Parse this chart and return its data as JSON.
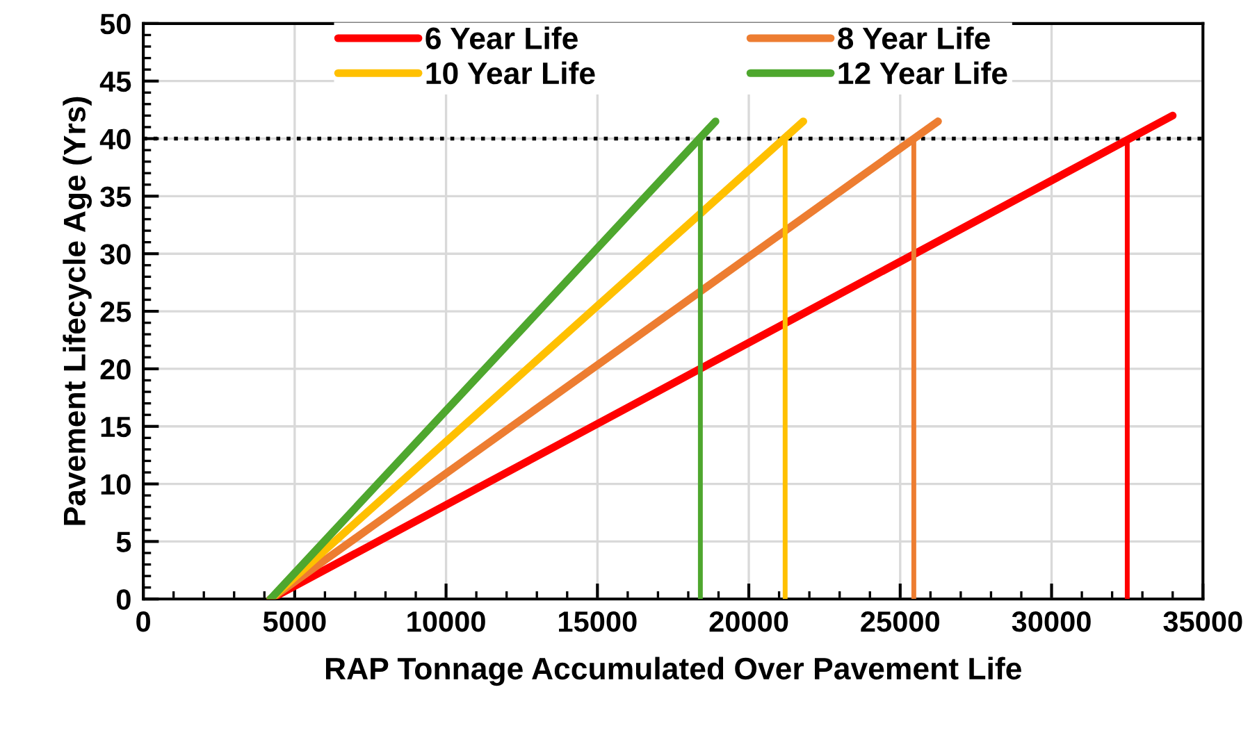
{
  "chart_data": {
    "type": "line",
    "xlabel": "RAP Tonnage Accumulated Over Pavement Life",
    "ylabel": "Pavement Lifecycle Age (Yrs)",
    "xlim": [
      0,
      35000
    ],
    "xticks": [
      0,
      5000,
      10000,
      15000,
      20000,
      25000,
      30000,
      35000
    ],
    "ylim": [
      0,
      50
    ],
    "yticks": [
      0,
      5,
      10,
      15,
      20,
      25,
      30,
      35,
      40,
      45,
      50
    ],
    "grid": true,
    "legend": "top",
    "marker": "none",
    "line_style": "solid",
    "series": [
      {
        "name": "6 Year Life",
        "color": "#ff0000",
        "x": [
          4200,
          34000
        ],
        "values": [
          0,
          42
        ]
      },
      {
        "name": "8 Year Life",
        "color": "#ed7d31",
        "x": [
          4200,
          26250
        ],
        "values": [
          0,
          41.5
        ]
      },
      {
        "name": "10 Year Life",
        "color": "#ffc000",
        "x": [
          4200,
          21800
        ],
        "values": [
          0,
          41.5
        ]
      },
      {
        "name": "12 Year Life",
        "color": "#4ea72e",
        "x": [
          4200,
          18900
        ],
        "values": [
          0,
          41.5
        ]
      },
      {
        "color": "#ff0000",
        "x": [
          32500,
          32500
        ],
        "values": [
          0,
          40
        ]
      },
      {
        "color": "#ed7d31",
        "x": [
          25450,
          25450
        ],
        "values": [
          0,
          40
        ]
      },
      {
        "color": "#ffc000",
        "x": [
          21200,
          21200
        ],
        "values": [
          0,
          40
        ]
      },
      {
        "color": "#4ea72e",
        "x": [
          18400,
          18400
        ],
        "values": [
          0,
          40
        ]
      }
    ],
    "ref_lines": [
      {
        "axis": "y",
        "value": 40,
        "color": "#000000",
        "line_style": "dotted"
      }
    ]
  }
}
